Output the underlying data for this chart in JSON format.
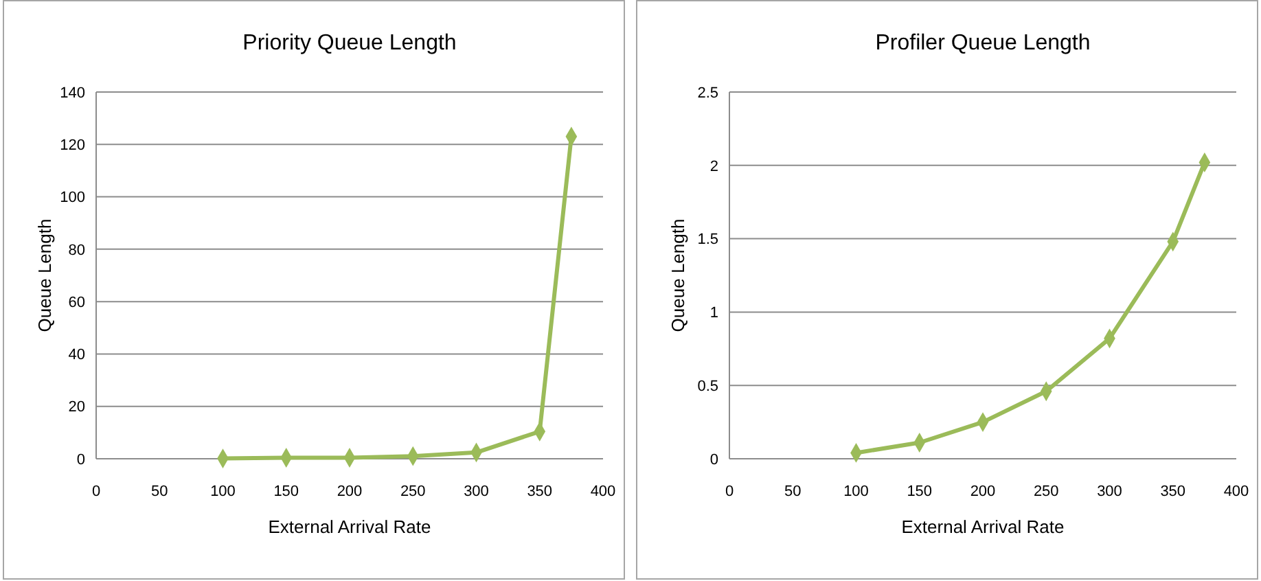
{
  "chart_data": [
    {
      "type": "line",
      "title": "Priority Queue Length",
      "xlabel": "External Arrival Rate",
      "ylabel": "Queue Length",
      "x": [
        100,
        150,
        200,
        250,
        300,
        350,
        375
      ],
      "series": [
        {
          "color": "#9bbb59",
          "values": [
            0.1,
            0.4,
            0.4,
            1.0,
            2.4,
            10.4,
            123
          ]
        }
      ],
      "xlim": [
        0,
        400
      ],
      "xticks": [
        0,
        50,
        100,
        150,
        200,
        250,
        300,
        350,
        400
      ],
      "ylim": [
        0,
        140
      ],
      "yticks": [
        0,
        20,
        40,
        60,
        80,
        100,
        120,
        140
      ],
      "grid": "y",
      "marker": "diamond"
    },
    {
      "type": "line",
      "title": "Profiler Queue Length",
      "xlabel": "External Arrival Rate",
      "ylabel": "Queue Length",
      "x": [
        100,
        150,
        200,
        250,
        300,
        350,
        375
      ],
      "series": [
        {
          "color": "#9bbb59",
          "values": [
            0.04,
            0.11,
            0.25,
            0.46,
            0.82,
            1.48,
            2.02
          ]
        }
      ],
      "xlim": [
        0,
        400
      ],
      "xticks": [
        0,
        50,
        100,
        150,
        200,
        250,
        300,
        350,
        400
      ],
      "ylim": [
        0,
        2.5
      ],
      "yticks": [
        0,
        0.5,
        1,
        1.5,
        2,
        2.5
      ],
      "grid": "y",
      "marker": "diamond"
    }
  ]
}
